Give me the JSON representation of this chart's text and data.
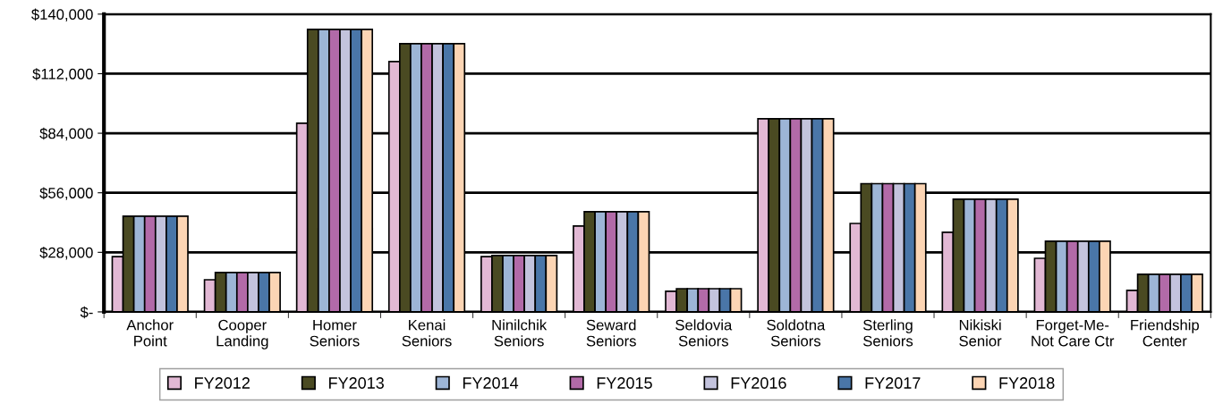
{
  "chart_data": {
    "type": "bar",
    "categories": [
      "Anchor\nPoint",
      "Cooper\nLanding",
      "Homer\nSeniors",
      "Kenai\nSeniors",
      "Ninilchik\nSeniors",
      "Seward\nSeniors",
      "Seldovia\nSeniors",
      "Soldotna\nSeniors",
      "Sterling\nSeniors",
      "Nikiski\nSenior",
      "Forget-Me-\nNot Care Ctr",
      "Friendship\nCenter"
    ],
    "series": [
      {
        "name": "FY2012",
        "color": "#e2b8d4",
        "values": [
          26000,
          15100,
          88700,
          117700,
          26000,
          40400,
          9700,
          90800,
          41600,
          37400,
          25200,
          10100
        ]
      },
      {
        "name": "FY2013",
        "color": "#4a4a22",
        "values": [
          45000,
          18500,
          132800,
          126100,
          26500,
          47100,
          10900,
          90800,
          60300,
          53000,
          33200,
          17700
        ]
      },
      {
        "name": "FY2014",
        "color": "#9db5d6",
        "values": [
          45000,
          18500,
          132800,
          126100,
          26500,
          47100,
          10900,
          90800,
          60300,
          53000,
          33200,
          17700
        ]
      },
      {
        "name": "FY2015",
        "color": "#b26aa8",
        "values": [
          45000,
          18500,
          132800,
          126100,
          26500,
          47100,
          10900,
          90800,
          60300,
          53000,
          33200,
          17700
        ]
      },
      {
        "name": "FY2016",
        "color": "#c3c3dd",
        "values": [
          45000,
          18500,
          132800,
          126100,
          26500,
          47100,
          10900,
          90800,
          60300,
          53000,
          33200,
          17700
        ]
      },
      {
        "name": "FY2017",
        "color": "#4a76a8",
        "values": [
          45000,
          18500,
          132800,
          126100,
          26500,
          47100,
          10900,
          90800,
          60300,
          53000,
          33200,
          17700
        ]
      },
      {
        "name": "FY2018",
        "color": "#fcd5b4",
        "values": [
          45000,
          18500,
          132800,
          126100,
          26500,
          47100,
          10900,
          90800,
          60300,
          53000,
          33200,
          17700
        ]
      }
    ],
    "ylim": [
      0,
      140000
    ],
    "yticks": [
      {
        "value": 0,
        "label": "$-"
      },
      {
        "value": 28000,
        "label": "$28,000"
      },
      {
        "value": 56000,
        "label": "$56,000"
      },
      {
        "value": 84000,
        "label": "$84,000"
      },
      {
        "value": 112000,
        "label": "$112,000"
      },
      {
        "value": 140000,
        "label": "$140,000"
      }
    ],
    "grid": "y",
    "legend": "bottom"
  }
}
